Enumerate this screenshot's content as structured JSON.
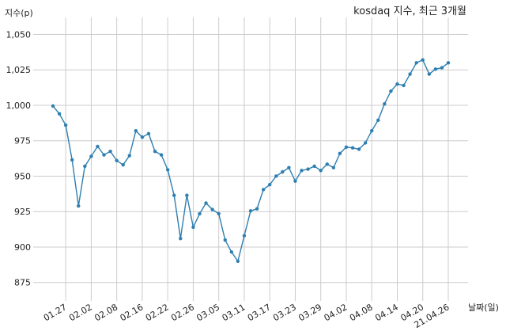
{
  "chart_data": {
    "type": "line",
    "title": "kosdaq 지수, 최근 3개월",
    "xlabel": "날짜(일)",
    "ylabel": "지수(p)",
    "ylim": [
      862,
      1062
    ],
    "yticks": [
      875,
      900,
      925,
      950,
      975,
      1000,
      1025,
      1050
    ],
    "ytick_labels": [
      "875",
      "900",
      "925",
      "950",
      "975",
      "1,000",
      "1,025",
      "1,050"
    ],
    "grid": true,
    "line_color": "#2e7fb0",
    "x_ticks": [
      {
        "index": 2,
        "label": "01.27"
      },
      {
        "index": 6,
        "label": "02.02"
      },
      {
        "index": 10,
        "label": "02.08"
      },
      {
        "index": 14,
        "label": "02.16"
      },
      {
        "index": 18,
        "label": "02.22"
      },
      {
        "index": 22,
        "label": "02.26"
      },
      {
        "index": 26,
        "label": "03.05"
      },
      {
        "index": 30,
        "label": "03.11"
      },
      {
        "index": 34,
        "label": "03.17"
      },
      {
        "index": 38,
        "label": "03.23"
      },
      {
        "index": 42,
        "label": "03.29"
      },
      {
        "index": 46,
        "label": "04.02"
      },
      {
        "index": 50,
        "label": "04.08"
      },
      {
        "index": 54,
        "label": "04.14"
      },
      {
        "index": 58,
        "label": "04.20"
      },
      {
        "index": 62,
        "label": "21.04.26"
      }
    ],
    "values": [
      999.5,
      994,
      986,
      961.5,
      929,
      957,
      964,
      971,
      965,
      967.5,
      961,
      958,
      964.5,
      982,
      977.5,
      980,
      967.5,
      965,
      954.5,
      936.5,
      906,
      936.5,
      914,
      923.5,
      931,
      926.5,
      923.5,
      905,
      896.5,
      890,
      908,
      925.5,
      927,
      940.5,
      944,
      950,
      953,
      956,
      946.5,
      954,
      955,
      957,
      954,
      958.5,
      956,
      966,
      970.5,
      970,
      969,
      973.5,
      982,
      989.5,
      1001,
      1010,
      1015,
      1014,
      1022,
      1030,
      1032,
      1022,
      1025.5,
      1026.5,
      1030
    ]
  }
}
